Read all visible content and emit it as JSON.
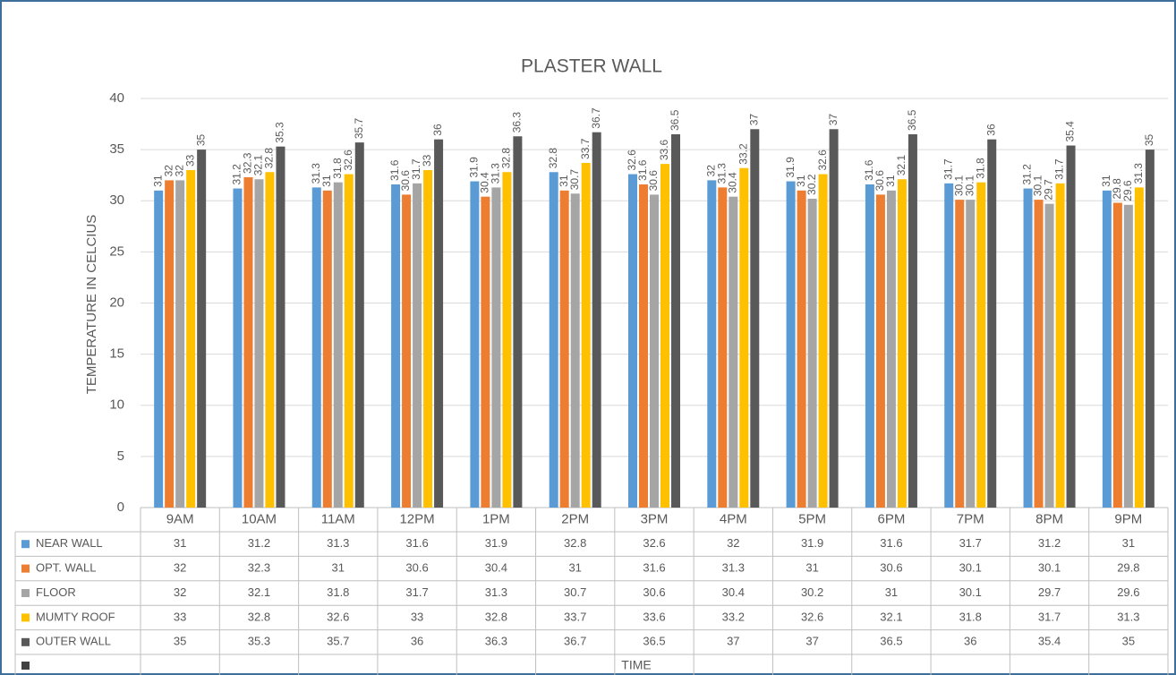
{
  "chart_data": {
    "type": "bar",
    "title": "PLASTER WALL",
    "y_label": "TEMPERATURE IN CELCIUS",
    "x_label": "TIME",
    "categories": [
      "9AM",
      "10AM",
      "11AM",
      "12PM",
      "1PM",
      "2PM",
      "3PM",
      "4PM",
      "5PM",
      "6PM",
      "7PM",
      "8PM",
      "9PM"
    ],
    "series": [
      {
        "name": "NEAR WALL",
        "color": "#5b9bd5",
        "values": [
          31,
          31.2,
          31.3,
          31.6,
          31.9,
          32.8,
          32.6,
          32,
          31.9,
          31.6,
          31.7,
          31.2,
          31
        ]
      },
      {
        "name": "OPT. WALL",
        "color": "#ed7d31",
        "values": [
          32,
          32.3,
          31,
          30.6,
          30.4,
          31,
          31.6,
          31.3,
          31,
          30.6,
          30.1,
          30.1,
          29.8
        ]
      },
      {
        "name": "FLOOR",
        "color": "#a5a5a5",
        "values": [
          32,
          32.1,
          31.8,
          31.7,
          31.3,
          30.7,
          30.6,
          30.4,
          30.2,
          31,
          30.1,
          29.7,
          29.6
        ]
      },
      {
        "name": "MUMTY ROOF",
        "color": "#ffc000",
        "values": [
          33,
          32.8,
          32.6,
          33,
          32.8,
          33.7,
          33.6,
          33.2,
          32.6,
          32.1,
          31.8,
          31.7,
          31.3
        ]
      },
      {
        "name": "OUTER WALL",
        "color": "#595959",
        "values": [
          35,
          35.3,
          35.7,
          36,
          36.3,
          36.7,
          36.5,
          37,
          37,
          36.5,
          36,
          35.4,
          35
        ]
      }
    ],
    "ylim": [
      0,
      40
    ],
    "yticks": [
      0,
      5,
      10,
      15,
      20,
      25,
      30,
      35,
      40
    ],
    "grid": true
  }
}
